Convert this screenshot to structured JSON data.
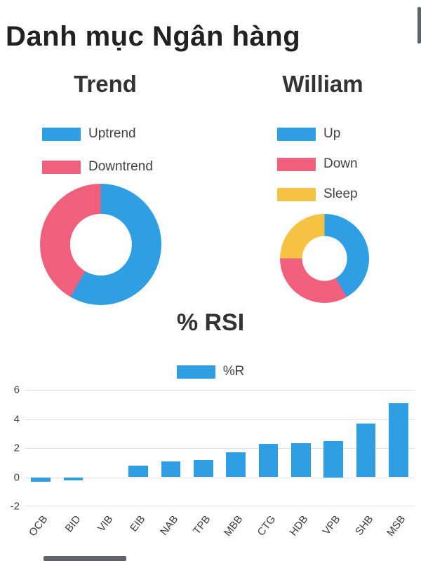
{
  "page": {
    "title": "Danh mục Ngân hàng"
  },
  "colors": {
    "blue": "#2F9EE3",
    "pink": "#F0607D",
    "yellow": "#F6C244",
    "title_text": "#212121",
    "chart_title_text": "#333333",
    "legend_text": "#424242",
    "axis_text": "#444444",
    "gridline": "#e0e0e0",
    "scrollbar_thumb": "#5f6368",
    "background": "#ffffff"
  },
  "chart_data": [
    {
      "type": "pie",
      "title": "Trend",
      "donut": true,
      "legend_position": "top-left",
      "slices": [
        {
          "label": "Uptrend",
          "percent": 58.3,
          "color": "#2F9EE3"
        },
        {
          "label": "Downtrend",
          "percent": 41.7,
          "color": "#F0607D"
        }
      ]
    },
    {
      "type": "pie",
      "title": "William",
      "donut": true,
      "legend_position": "top-left",
      "slices": [
        {
          "label": "Up",
          "percent": 41.7,
          "color": "#2F9EE3"
        },
        {
          "label": "Down",
          "percent": 33.3,
          "color": "#F0607D"
        },
        {
          "label": "Sleep",
          "percent": 25.0,
          "color": "#F6C244"
        }
      ]
    },
    {
      "type": "bar",
      "title": "% RSI",
      "series_label": "%R",
      "series_color": "#2F9EE3",
      "categories": [
        "OCB",
        "BID",
        "VIB",
        "EIB",
        "NAB",
        "TPB",
        "MBB",
        "CTG",
        "HDB",
        "VPB",
        "SHB",
        "MSB"
      ],
      "values": [
        -0.3,
        -0.2,
        0,
        0.8,
        1.1,
        1.2,
        1.7,
        2.3,
        2.35,
        2.5,
        3.7,
        5.1
      ],
      "ylim": [
        -2,
        6
      ],
      "yticks": [
        6,
        4,
        2,
        0,
        -2
      ],
      "grid": true,
      "legend_position": "top"
    }
  ]
}
